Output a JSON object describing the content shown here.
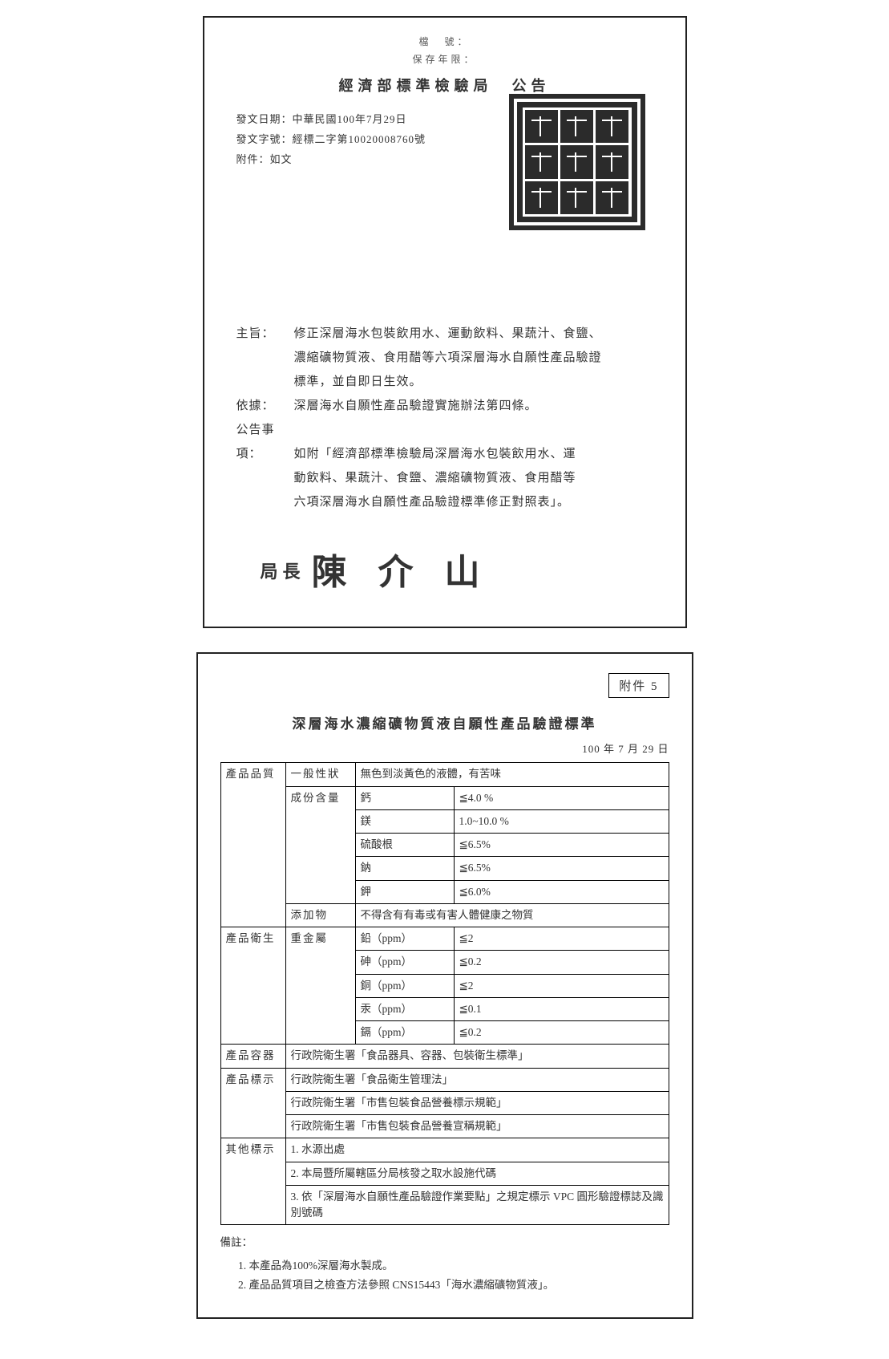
{
  "page1": {
    "meta_line1": "檔　號：",
    "meta_line2": "保存年限：",
    "title": "經濟部標準檢驗局　公告",
    "issue_date_lbl": "發文日期：",
    "issue_date": "中華民國100年7月29日",
    "issue_no_lbl": "發文字號：",
    "issue_no": "經標二字第10020008760號",
    "attach_lbl": "附件：",
    "attach": "如文",
    "seal_chars": [
      "經",
      "濟",
      "部",
      "標",
      "準",
      "檢",
      "驗",
      "局",
      "印"
    ],
    "subject_lbl": "主旨：",
    "subject_l1": "修正深層海水包裝飲用水、運動飲料、果蔬汁、食鹽、",
    "subject_l2": "濃縮礦物質液、食用醋等六項深層海水自願性產品驗證",
    "subject_l3": "標準，並自即日生效。",
    "basis_lbl": "依據：",
    "basis": "深層海水自願性產品驗證實施辦法第四條。",
    "matters_lbl": "公告事項：",
    "matters_l1": "如附「經濟部標準檢驗局深層海水包裝飲用水、運",
    "matters_l2": "動飲料、果蔬汁、食鹽、濃縮礦物質液、食用醋等",
    "matters_l3": "六項深層海水自願性產品驗證標準修正對照表」。",
    "sign_role": "局長",
    "sign_name": "陳 介 山"
  },
  "page2": {
    "attach_label": "附件 5",
    "title": "深層海水濃縮礦物質液自願性產品驗證標準",
    "date": "100 年 7 月 29 日",
    "cat_quality": "產品品質",
    "sub_general": "一般性狀",
    "general_desc": "無色到淡黃色的液體，有苦味",
    "sub_component": "成份含量",
    "components": [
      {
        "name": "鈣",
        "limit": "≦4.0 %"
      },
      {
        "name": "鎂",
        "limit": "1.0~10.0 %"
      },
      {
        "name": "硫酸根",
        "limit": "≦6.5%"
      },
      {
        "name": "鈉",
        "limit": "≦6.5%"
      },
      {
        "name": "鉀",
        "limit": "≦6.0%"
      }
    ],
    "sub_additive": "添加物",
    "additive_desc": "不得含有有毒或有害人體健康之物質",
    "cat_hygiene": "產品衛生",
    "sub_metal": "重金屬",
    "metals": [
      {
        "name": "鉛（ppm）",
        "limit": "≦2"
      },
      {
        "name": "砷（ppm）",
        "limit": "≦0.2"
      },
      {
        "name": "銅（ppm）",
        "limit": "≦2"
      },
      {
        "name": "汞（ppm）",
        "limit": "≦0.1"
      },
      {
        "name": "鎘（ppm）",
        "limit": "≦0.2"
      }
    ],
    "cat_container": "產品容器",
    "container_desc": "行政院衛生署「食品器具、容器、包裝衛生標準」",
    "cat_label": "產品標示",
    "label_rows": [
      "行政院衛生署「食品衛生管理法」",
      "行政院衛生署「市售包裝食品營養標示規範」",
      "行政院衛生署「市售包裝食品營養宣稱規範」"
    ],
    "cat_other": "其他標示",
    "other_rows": [
      "1. 水源出處",
      "2. 本局暨所屬轄區分局核發之取水設施代碼",
      "3. 依「深層海水自願性產品驗證作業要點」之規定標示 VPC 圓形驗證標誌及識別號碼"
    ],
    "remarks_lbl": "備註：",
    "remark1": "本產品為100%深層海水製成。",
    "remark2": "產品品質項目之檢查方法參照 CNS15443「海水濃縮礦物質液」。"
  }
}
